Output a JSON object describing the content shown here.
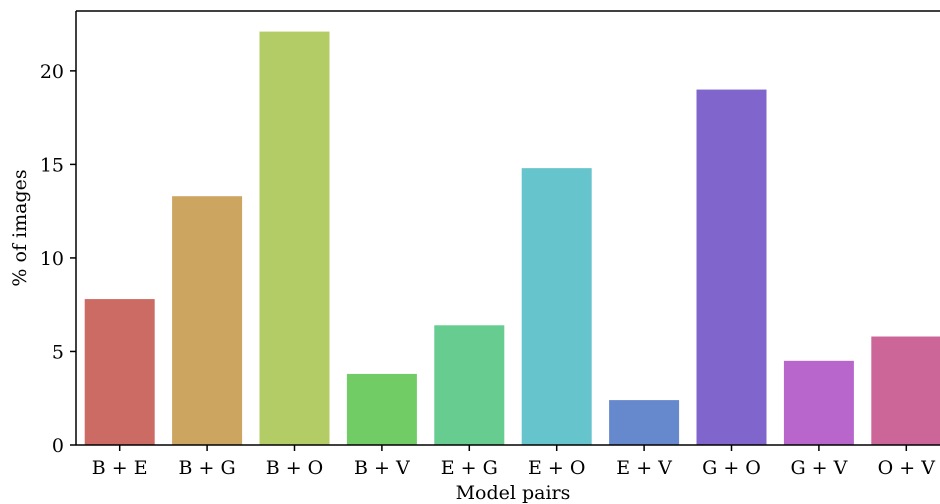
{
  "chart_data": {
    "type": "bar",
    "title": "",
    "xlabel": "Model pairs",
    "ylabel": "% of images",
    "categories": [
      "B + E",
      "B + G",
      "B + O",
      "B + V",
      "E + G",
      "E + O",
      "E + V",
      "G + O",
      "G + V",
      "O + V"
    ],
    "values": [
      7.8,
      13.3,
      22.1,
      3.8,
      6.4,
      14.8,
      2.4,
      19.0,
      4.5,
      5.8
    ],
    "colors": [
      "#cc6b63",
      "#cca661",
      "#b3cc66",
      "#72cc66",
      "#66cc8f",
      "#66c5cc",
      "#6688cc",
      "#8066cc",
      "#b966cc",
      "#cc6699"
    ],
    "ylim": [
      0,
      23.2
    ],
    "yticks": [
      0,
      5,
      10,
      15,
      20
    ],
    "grid": false,
    "legend": "none"
  }
}
